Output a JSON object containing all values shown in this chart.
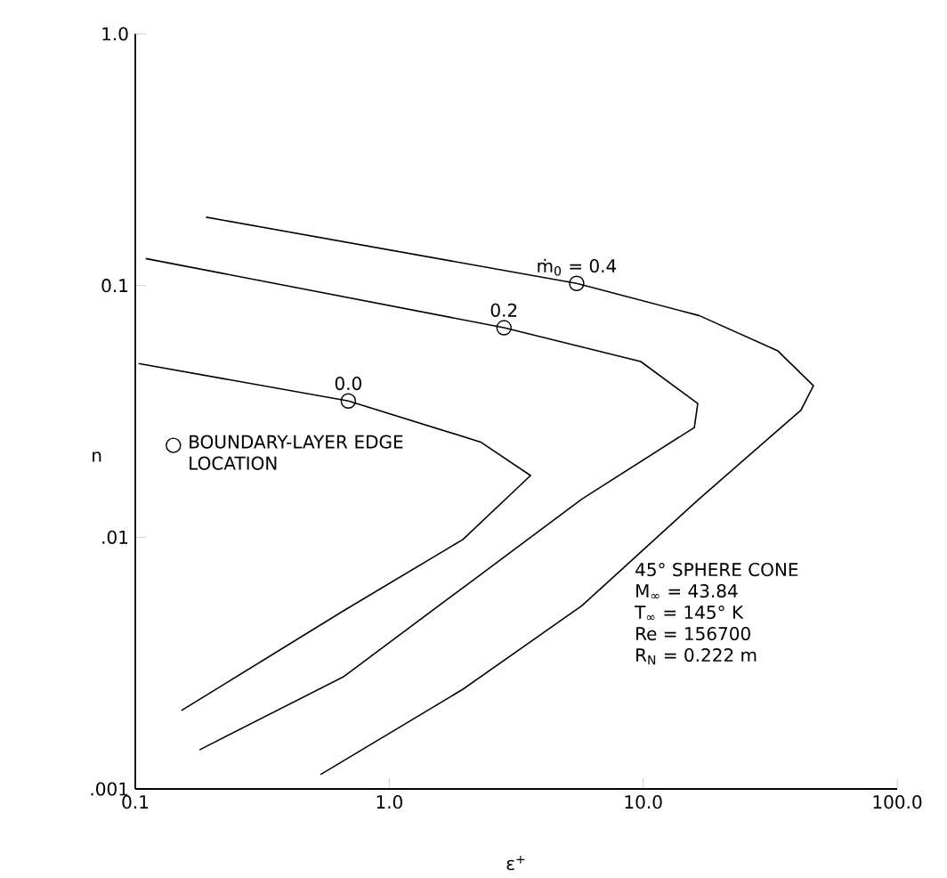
{
  "chart_data": {
    "type": "line",
    "xlabel": "ε$^{+}$",
    "ylabel": "n",
    "log": "xy",
    "legend": "left",
    "marker": "none",
    "line_style": "solid",
    "grid": false,
    "xlim": [
      0.1,
      100
    ],
    "ylim": [
      0.001,
      1
    ],
    "xticks": [
      0.1,
      {
        "value": 1,
        "label": "1.0"
      },
      {
        "value": 10,
        "label": "10.0"
      },
      {
        "value": 100,
        "label": "100.0"
      }
    ],
    "yticks": [
      {
        "value": 0.001,
        "label": ".001"
      },
      {
        "value": 0.01,
        "label": ".01"
      },
      0.1,
      {
        "value": 1,
        "label": "1.0"
      }
    ],
    "series": [
      {
        "color": "#000000",
        "x": [
          0.103,
          0.69,
          2.29,
          3.6,
          1.95,
          0.66,
          0.152
        ],
        "values": [
          0.049,
          0.0348,
          0.0239,
          0.0176,
          0.0098,
          0.0051,
          0.00205
        ]
      },
      {
        "color": "#000000",
        "x": [
          0.11,
          2.83,
          9.78,
          16.4,
          15.9,
          5.74,
          1.95,
          0.66,
          0.179
        ],
        "values": [
          0.128,
          0.068,
          0.0499,
          0.034,
          0.0273,
          0.0142,
          0.0063,
          0.00279,
          0.00143
        ]
      },
      {
        "color": "#000000",
        "x": [
          0.19,
          5.47,
          16.6,
          33.9,
          46.8,
          41.8,
          16.6,
          5.74,
          1.95,
          0.536
        ],
        "values": [
          0.187,
          0.102,
          0.076,
          0.055,
          0.04,
          0.032,
          0.0142,
          0.00535,
          0.00249,
          0.00114
        ]
      },
      {
        "type": "scatter",
        "name": "BOUNDARY-LAYER EDGE LOCATION",
        "marker": "circle",
        "color": "#000000",
        "x": [
          0.69,
          2.83,
          5.47
        ],
        "values": [
          0.0348,
          0.068,
          0.102
        ]
      }
    ],
    "annotations": [
      {
        "text": "0.0",
        "x": 0.69,
        "y": 0.0348
      },
      {
        "text": "0.2",
        "x": 2.83,
        "y": 0.068
      },
      {
        "text": "ṁ$_{0}$ = 0.4",
        "x": 5.47,
        "y": 0.102
      },
      "45° SPHERE CONE",
      "M$_{∞}$ = 43.84",
      "T$_{∞}$ = 145° K",
      "Re = 156700",
      "R$_{N}$ = 0.222 m"
    ]
  }
}
